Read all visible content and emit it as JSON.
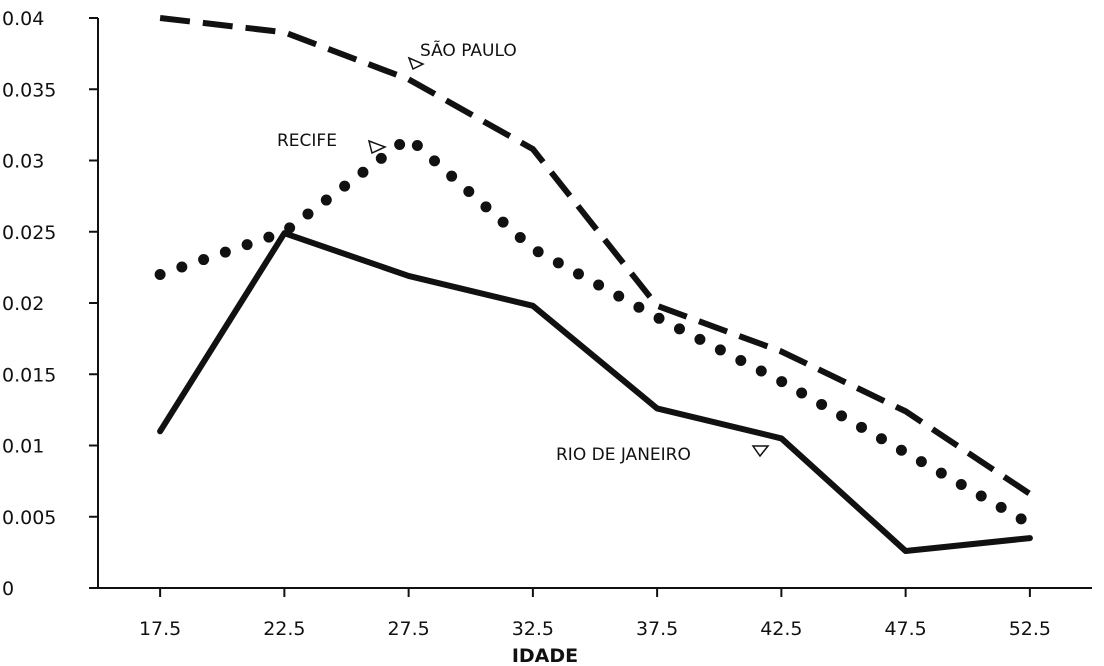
{
  "chart_data": {
    "type": "line",
    "xlabel": "IDADE",
    "ylabel": "",
    "x": [
      17.5,
      22.5,
      27.5,
      32.5,
      37.5,
      42.5,
      47.5,
      52.5
    ],
    "x_tick_labels": [
      "17.5",
      "22.5",
      "27.5",
      "32.5",
      "37.5",
      "42.5",
      "47.5",
      "52.5"
    ],
    "ylim": [
      0,
      0.04
    ],
    "y_ticks": [
      0,
      0.005,
      0.01,
      0.015,
      0.02,
      0.025,
      0.03,
      0.035,
      0.04
    ],
    "y_tick_labels": [
      "0",
      "0.005",
      "0.01",
      "0.015",
      "0.02",
      "0.025",
      "0.03",
      "0.035",
      "0.04"
    ],
    "grid": false,
    "series": [
      {
        "name": "SÃO PAULO",
        "style": "dashed",
        "color": "#111111",
        "values": [
          0.04,
          0.039,
          0.0357,
          0.0308,
          0.0198,
          0.0166,
          0.0124,
          0.0066
        ]
      },
      {
        "name": "RECIFE",
        "style": "dotted",
        "color": "#111111",
        "values": [
          0.022,
          0.025,
          0.0316,
          0.0238,
          0.019,
          0.0145,
          0.0095,
          0.0045
        ]
      },
      {
        "name": "RIO DE JANEIRO",
        "style": "solid",
        "color": "#111111",
        "values": [
          0.011,
          0.0249,
          0.0219,
          0.0198,
          0.0126,
          0.0105,
          0.0026,
          0.0035
        ]
      }
    ]
  }
}
